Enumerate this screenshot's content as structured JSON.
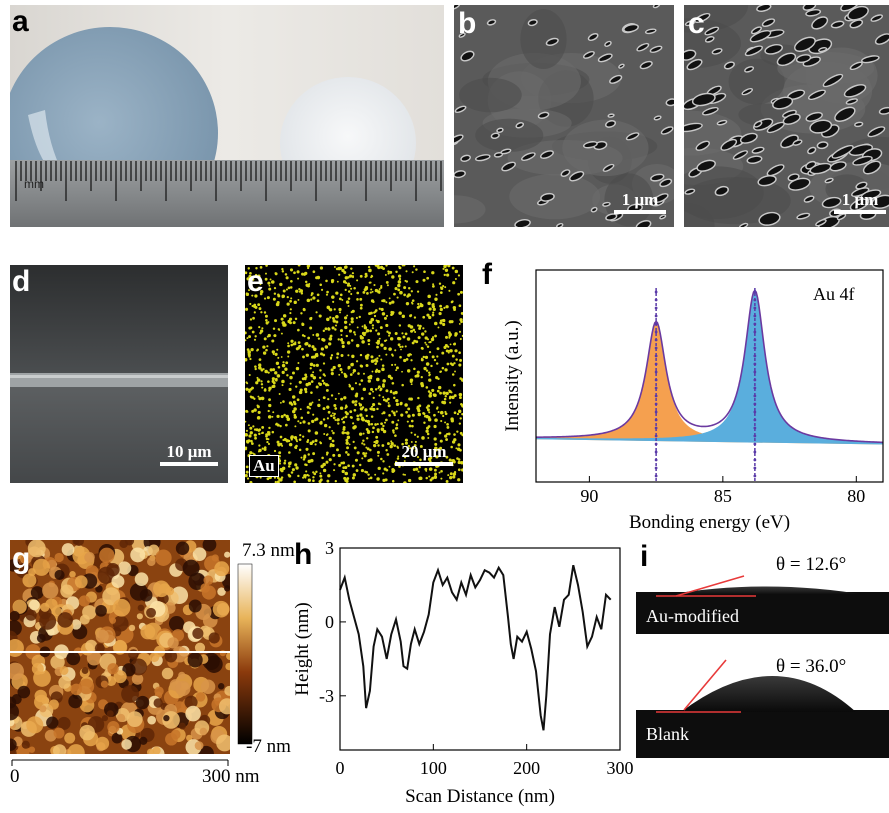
{
  "panels": {
    "a": {
      "label": "a",
      "ruler_unit": "mm"
    },
    "b": {
      "label": "b",
      "scale": "1 μm"
    },
    "c": {
      "label": "c",
      "scale": "1 μm"
    },
    "d": {
      "label": "d",
      "scale": "10 μm"
    },
    "e": {
      "label": "e",
      "element": "Au",
      "scale": "20 μm"
    },
    "f": {
      "label": "f"
    },
    "g": {
      "label": "g",
      "colorbar_max": "7.3 nm",
      "colorbar_min": "-7 nm",
      "x_start": "0",
      "x_end": "300 nm"
    },
    "h": {
      "label": "h"
    },
    "i": {
      "label": "i",
      "top_angle": "θ = 12.6°",
      "top_sample": "Au-modified",
      "bottom_angle": "θ = 36.0°",
      "bottom_sample": "Blank"
    }
  },
  "chart_data": [
    {
      "type": "line",
      "panel": "f",
      "annotation": "Au 4f",
      "xlabel": "Bonding energy (eV)",
      "ylabel": "Intensity (a.u.)",
      "xlim": [
        92,
        79
      ],
      "x_ticks": [
        "90",
        "85",
        "80"
      ],
      "peaks": [
        {
          "center": 87.5,
          "height": 0.78,
          "fill": "#f5a04f"
        },
        {
          "center": 83.8,
          "height": 1.0,
          "fill": "#5aaedd"
        }
      ],
      "reference_lines": [
        87.5,
        83.8
      ],
      "grid": false
    },
    {
      "type": "line",
      "panel": "h",
      "xlabel": "Scan Distance (nm)",
      "ylabel": "Height (nm)",
      "xlim": [
        0,
        300
      ],
      "ylim": [
        -5.2,
        3
      ],
      "x_ticks": [
        "0",
        "100",
        "200",
        "300"
      ],
      "y_ticks": [
        "3",
        "0",
        "-3"
      ],
      "x": [
        0,
        5,
        10,
        15,
        20,
        25,
        28,
        32,
        36,
        40,
        45,
        50,
        55,
        60,
        65,
        68,
        72,
        76,
        80,
        85,
        90,
        95,
        100,
        105,
        110,
        115,
        120,
        125,
        130,
        135,
        140,
        145,
        150,
        155,
        160,
        165,
        170,
        175,
        180,
        183,
        186,
        190,
        195,
        200,
        205,
        210,
        215,
        218,
        221,
        225,
        230,
        235,
        240,
        245,
        250,
        255,
        260,
        265,
        270,
        275,
        280,
        285,
        290
      ],
      "values": [
        1.3,
        1.8,
        0.9,
        0.2,
        -0.5,
        -1.8,
        -3.5,
        -2.8,
        -1.0,
        -0.3,
        -0.6,
        -1.5,
        -0.5,
        0.1,
        -0.8,
        -1.8,
        -1.9,
        -0.9,
        -0.3,
        -0.9,
        -0.4,
        0.3,
        1.6,
        2.1,
        1.5,
        1.8,
        1.2,
        0.9,
        1.6,
        1.1,
        1.9,
        1.4,
        1.7,
        2.1,
        2.0,
        1.8,
        2.2,
        1.9,
        0.2,
        -0.9,
        -1.5,
        -0.6,
        -0.8,
        -0.4,
        -1.1,
        -2.0,
        -3.8,
        -4.4,
        -3.0,
        -0.5,
        0.6,
        -0.2,
        0.9,
        1.1,
        2.3,
        1.5,
        0.4,
        -1.0,
        -0.6,
        0.2,
        -0.3,
        1.1,
        0.9
      ]
    }
  ]
}
